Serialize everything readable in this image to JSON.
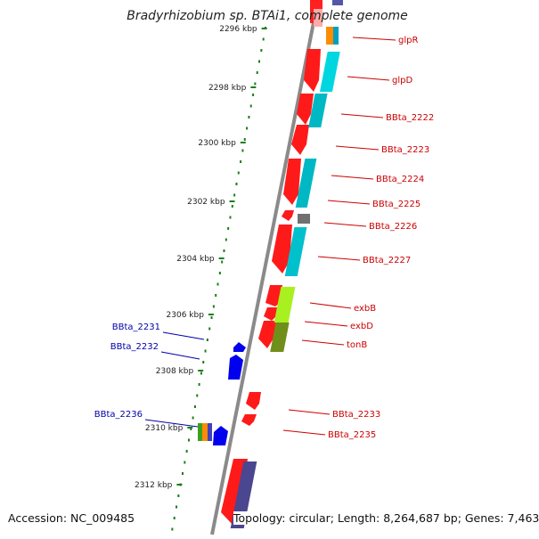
{
  "title": "Bradyrhizobium sp. BTAi1, complete genome",
  "footer": {
    "accession": "Accession: NC_009485",
    "topology": "Topology: circular; Length: 8,264,687 bp; Genes: 7,463"
  },
  "colors": {
    "forward_label": "#cc0000",
    "reverse_label": "#0000aa",
    "ruler": "#1a7f1a",
    "backbone": "#8a8a8a"
  },
  "ticks": [
    "2296 kbp",
    "2298 kbp",
    "2300 kbp",
    "2302 kbp",
    "2304 kbp",
    "2306 kbp",
    "2308 kbp",
    "2310 kbp",
    "2312 kbp"
  ],
  "forward_genes": [
    "glpR",
    "glpD",
    "BBta_2222",
    "BBta_2223",
    "BBta_2224",
    "BBta_2225",
    "BBta_2226",
    "BBta_2227",
    "exbB",
    "exbD",
    "tonB",
    "BBta_2233",
    "BBta_2235"
  ],
  "reverse_genes": [
    "BBta_2231",
    "BBta_2232",
    "BBta_2236"
  ]
}
